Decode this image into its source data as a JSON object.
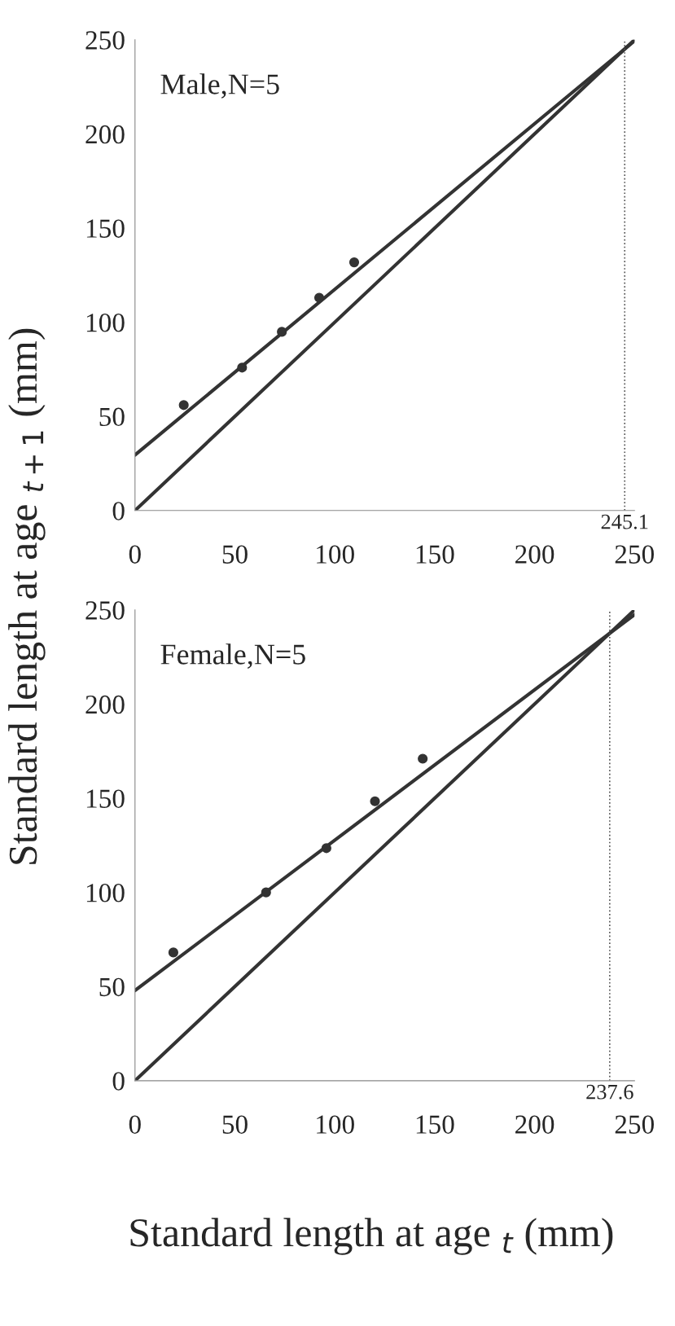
{
  "chart_data": [
    {
      "type": "scatter",
      "ylabel": "Standard length at age $_{t+1}$ (mm)",
      "annotations": [
        "Male,N=5"
      ],
      "xlim": [
        0,
        250
      ],
      "ylim": [
        0,
        250
      ],
      "xticks": [
        0,
        50,
        100,
        150,
        200,
        250
      ],
      "yticks": [
        0,
        50,
        100,
        150,
        200,
        250
      ],
      "grid": false,
      "series": [
        {
          "marker": "circle",
          "color": "#333333",
          "x": [
            24.4,
            53.6,
            73.5,
            92.2,
            109.7
          ],
          "values": [
            56,
            75.9,
            94.9,
            113,
            131.8
          ]
        },
        {
          "type": "line",
          "color": "#333333",
          "x": [
            0,
            250
          ],
          "values": [
            29.5,
            249.4
          ]
        },
        {
          "type": "line",
          "color": "#333333",
          "x": [
            0,
            250
          ],
          "values": [
            0,
            250
          ]
        }
      ],
      "ref_lines": [
        {
          "axis": "x",
          "value": 245.1,
          "label": "245.1",
          "line_style": "dotted",
          "color": "#555555"
        }
      ]
    },
    {
      "type": "scatter",
      "xlabel": "Standard length at age $_{t}$ (mm)",
      "annotations": [
        "Female,N=5"
      ],
      "xlim": [
        0,
        250
      ],
      "ylim": [
        0,
        250
      ],
      "xticks": [
        0,
        50,
        100,
        150,
        200,
        250
      ],
      "yticks": [
        0,
        50,
        100,
        150,
        200,
        250
      ],
      "grid": false,
      "series": [
        {
          "marker": "circle",
          "color": "#333333",
          "x": [
            19.2,
            65.6,
            95.8,
            120.1,
            144
          ],
          "values": [
            68.1,
            100,
            123.5,
            148.4,
            171
          ]
        },
        {
          "type": "line",
          "color": "#333333",
          "x": [
            0,
            250
          ],
          "values": [
            47.9,
            247.5
          ]
        },
        {
          "type": "line",
          "color": "#333333",
          "x": [
            0,
            250
          ],
          "values": [
            0,
            250
          ]
        }
      ],
      "ref_lines": [
        {
          "axis": "x",
          "value": 237.6,
          "label": "237.6",
          "line_style": "dotted",
          "color": "#555555"
        }
      ]
    }
  ]
}
